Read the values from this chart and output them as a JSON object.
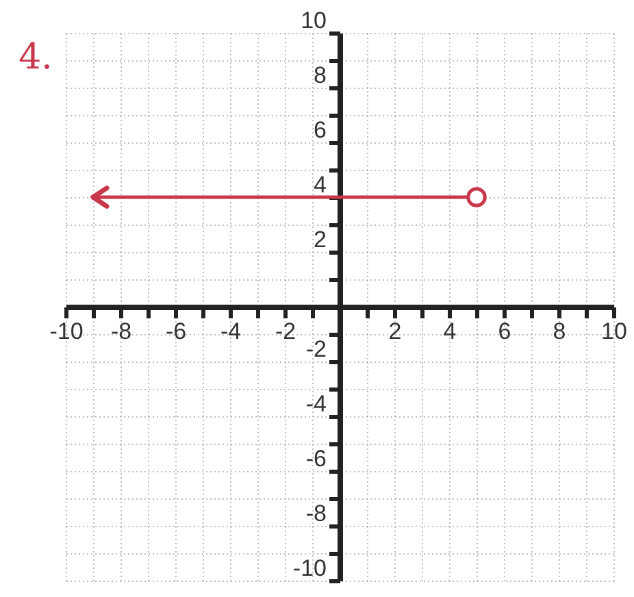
{
  "chart_data": {
    "type": "line",
    "annotations": [
      "4."
    ],
    "xlim": [
      -10,
      10
    ],
    "ylim": [
      -10,
      10
    ],
    "xticks": [
      -10,
      {
        "value": -9,
        "label": null
      },
      -8,
      {
        "value": -7,
        "label": null
      },
      -6,
      {
        "value": -5,
        "label": null
      },
      -4,
      {
        "value": -3,
        "label": null
      },
      -2,
      {
        "value": -1,
        "label": null
      },
      {
        "value": 1,
        "label": null
      },
      2,
      {
        "value": 3,
        "label": null
      },
      4,
      {
        "value": 5,
        "label": null
      },
      6,
      {
        "value": 7,
        "label": null
      },
      8,
      {
        "value": 9,
        "label": null
      },
      10
    ],
    "yticks": [
      -10,
      {
        "value": -9,
        "label": null
      },
      -8,
      {
        "value": -7,
        "label": null
      },
      -6,
      {
        "value": -5,
        "label": null
      },
      -4,
      {
        "value": -3,
        "label": null
      },
      -2,
      {
        "value": -1,
        "label": null
      },
      {
        "value": 1,
        "label": null
      },
      2,
      {
        "value": 3,
        "label": null
      },
      4,
      {
        "value": 5,
        "label": null
      },
      6,
      {
        "value": 7,
        "label": null
      },
      8,
      {
        "value": 9,
        "label": null
      },
      10
    ],
    "grid": true,
    "series": [
      {
        "color": "#c8374a",
        "marker": "circle",
        "x": [
          -9,
          5
        ],
        "values": [
          4,
          4
        ]
      }
    ]
  }
}
